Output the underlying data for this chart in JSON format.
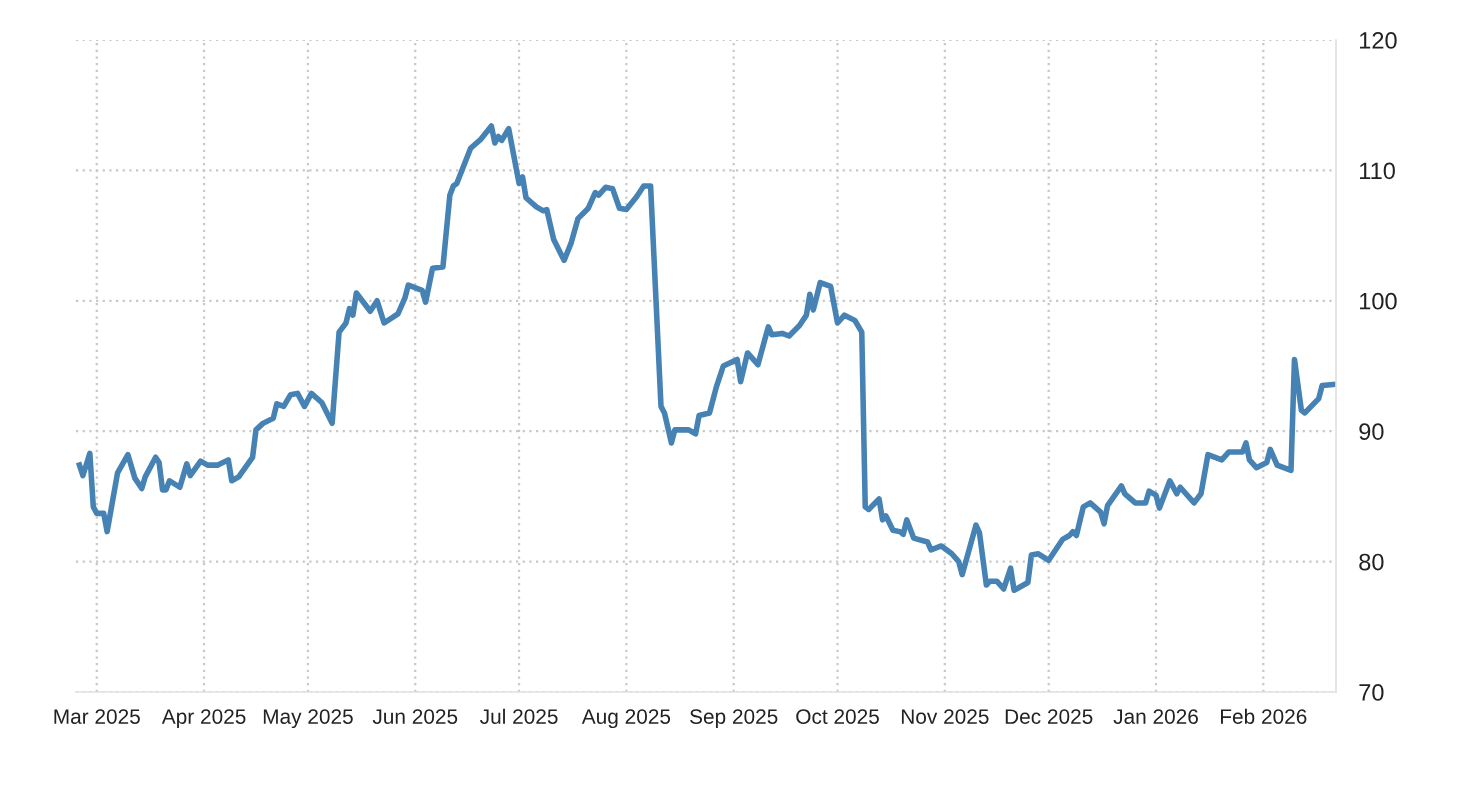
{
  "chart_data": {
    "type": "line",
    "x": [
      "2025-02-24",
      "2025-02-25",
      "2025-02-27",
      "2025-02-28",
      "2025-03-01",
      "2025-03-03",
      "2025-03-04",
      "2025-03-07",
      "2025-03-10",
      "2025-03-12",
      "2025-03-14",
      "2025-03-15",
      "2025-03-18",
      "2025-03-19",
      "2025-03-20",
      "2025-03-21",
      "2025-03-22",
      "2025-03-25",
      "2025-03-27",
      "2025-03-28",
      "2025-03-31",
      "2025-04-02",
      "2025-04-05",
      "2025-04-08",
      "2025-04-09",
      "2025-04-11",
      "2025-04-15",
      "2025-04-16",
      "2025-04-18",
      "2025-04-21",
      "2025-04-22",
      "2025-04-24",
      "2025-04-26",
      "2025-04-28",
      "2025-04-30",
      "2025-05-02",
      "2025-05-05",
      "2025-05-08",
      "2025-05-10",
      "2025-05-12",
      "2025-05-13",
      "2025-05-14",
      "2025-05-15",
      "2025-05-19",
      "2025-05-21",
      "2025-05-23",
      "2025-05-27",
      "2025-05-29",
      "2025-05-30",
      "2025-06-03",
      "2025-06-04",
      "2025-06-06",
      "2025-06-09",
      "2025-06-11",
      "2025-06-12",
      "2025-06-13",
      "2025-06-17",
      "2025-06-20",
      "2025-06-23",
      "2025-06-24",
      "2025-06-25",
      "2025-06-26",
      "2025-06-28",
      "2025-07-01",
      "2025-07-02",
      "2025-07-03",
      "2025-07-06",
      "2025-07-08",
      "2025-07-09",
      "2025-07-11",
      "2025-07-14",
      "2025-07-16",
      "2025-07-18",
      "2025-07-21",
      "2025-07-23",
      "2025-07-24",
      "2025-07-26",
      "2025-07-28",
      "2025-07-30",
      "2025-08-01",
      "2025-08-04",
      "2025-08-06",
      "2025-08-08",
      "2025-08-11",
      "2025-08-12",
      "2025-08-14",
      "2025-08-15",
      "2025-08-19",
      "2025-08-21",
      "2025-08-22",
      "2025-08-25",
      "2025-08-27",
      "2025-08-29",
      "2025-09-02",
      "2025-09-03",
      "2025-09-05",
      "2025-09-08",
      "2025-09-11",
      "2025-09-12",
      "2025-09-15",
      "2025-09-17",
      "2025-09-20",
      "2025-09-22",
      "2025-09-23",
      "2025-09-24",
      "2025-09-26",
      "2025-09-29",
      "2025-10-01",
      "2025-10-03",
      "2025-10-06",
      "2025-10-08",
      "2025-10-09",
      "2025-10-10",
      "2025-10-13",
      "2025-10-14",
      "2025-10-15",
      "2025-10-17",
      "2025-10-19",
      "2025-10-20",
      "2025-10-21",
      "2025-10-23",
      "2025-10-27",
      "2025-10-28",
      "2025-10-31",
      "2025-11-03",
      "2025-11-05",
      "2025-11-06",
      "2025-11-10",
      "2025-11-11",
      "2025-11-13",
      "2025-11-14",
      "2025-11-16",
      "2025-11-18",
      "2025-11-20",
      "2025-11-21",
      "2025-11-25",
      "2025-11-26",
      "2025-11-28",
      "2025-12-01",
      "2025-12-05",
      "2025-12-07",
      "2025-12-08",
      "2025-12-09",
      "2025-12-11",
      "2025-12-13",
      "2025-12-16",
      "2025-12-17",
      "2025-12-18",
      "2025-12-22",
      "2025-12-23",
      "2025-12-26",
      "2025-12-29",
      "2025-12-30",
      "2026-01-01",
      "2026-01-02",
      "2026-01-05",
      "2026-01-07",
      "2026-01-08",
      "2026-01-12",
      "2026-01-14",
      "2026-01-16",
      "2026-01-20",
      "2026-01-22",
      "2026-01-26",
      "2026-01-27",
      "2026-01-28",
      "2026-01-30",
      "2026-02-02",
      "2026-02-03",
      "2026-02-05",
      "2026-02-09",
      "2026-02-10",
      "2026-02-12",
      "2026-02-13",
      "2026-02-17",
      "2026-02-18",
      "2026-02-22"
    ],
    "series": [
      {
        "color": "#4682b4",
        "values": [
          87.4,
          86.6,
          88.3,
          84.2,
          83.7,
          83.7,
          82.3,
          86.8,
          88.2,
          86.4,
          85.6,
          86.5,
          88.0,
          87.6,
          85.5,
          85.5,
          86.2,
          85.7,
          87.5,
          86.6,
          87.7,
          87.4,
          87.4,
          87.8,
          86.2,
          86.5,
          88.0,
          90.1,
          90.6,
          91.0,
          92.1,
          91.9,
          92.8,
          92.9,
          91.9,
          92.9,
          92.2,
          90.6,
          97.6,
          98.3,
          99.4,
          98.9,
          100.6,
          99.2,
          100.0,
          98.3,
          99.0,
          100.2,
          101.2,
          100.8,
          99.9,
          102.5,
          102.6,
          108.1,
          108.8,
          109.0,
          111.7,
          112.4,
          113.4,
          112.1,
          112.6,
          112.3,
          113.2,
          109.0,
          109.5,
          107.9,
          107.2,
          106.9,
          107.0,
          104.7,
          103.1,
          104.4,
          106.3,
          107.1,
          108.3,
          108.1,
          108.7,
          108.6,
          107.1,
          107.0,
          108.0,
          108.8,
          108.8,
          91.9,
          91.4,
          89.1,
          90.1,
          90.1,
          89.8,
          91.2,
          91.4,
          93.4,
          95.0,
          95.5,
          93.8,
          96.0,
          95.1,
          98.0,
          97.4,
          97.5,
          97.3,
          98.1,
          98.9,
          100.5,
          99.3,
          101.4,
          101.1,
          98.3,
          98.9,
          98.5,
          97.6,
          84.2,
          84.0,
          84.8,
          83.2,
          83.5,
          82.4,
          82.3,
          82.1,
          83.2,
          81.8,
          81.5,
          80.9,
          81.2,
          80.6,
          80.0,
          79.0,
          82.8,
          82.2,
          78.2,
          78.5,
          78.5,
          77.9,
          79.5,
          77.8,
          78.4,
          80.5,
          80.6,
          80.1,
          81.7,
          82.0,
          82.3,
          82.0,
          84.2,
          84.5,
          83.8,
          82.9,
          84.3,
          85.8,
          85.2,
          84.5,
          84.5,
          85.4,
          85.1,
          84.1,
          86.2,
          85.2,
          85.7,
          84.5,
          85.2,
          88.2,
          87.8,
          88.4,
          88.4,
          89.1,
          87.8,
          87.2,
          87.6,
          88.6,
          87.4,
          87.0,
          95.5,
          91.6,
          91.4,
          92.5,
          93.5,
          93.6
        ]
      }
    ],
    "xlim": [
      "2025-02-23",
      "2026-02-22"
    ],
    "xticks": [
      {
        "value": "2025-03-01",
        "label": "Mar 2025"
      },
      {
        "value": "2025-04-01",
        "label": "Apr 2025"
      },
      {
        "value": "2025-05-01",
        "label": "May 2025"
      },
      {
        "value": "2025-06-01",
        "label": "Jun 2025"
      },
      {
        "value": "2025-07-01",
        "label": "Jul 2025"
      },
      {
        "value": "2025-08-01",
        "label": "Aug 2025"
      },
      {
        "value": "2025-09-01",
        "label": "Sep 2025"
      },
      {
        "value": "2025-10-01",
        "label": "Oct 2025"
      },
      {
        "value": "2025-11-01",
        "label": "Nov 2025"
      },
      {
        "value": "2025-12-01",
        "label": "Dec 2025"
      },
      {
        "value": "2026-01-01",
        "label": "Jan 2026"
      },
      {
        "value": "2026-02-01",
        "label": "Feb 2026"
      }
    ],
    "ylim": [
      70,
      120
    ],
    "yticks": [
      70,
      80,
      90,
      100,
      110,
      120
    ],
    "grid": true,
    "line_style": "solid",
    "marker": "none"
  }
}
